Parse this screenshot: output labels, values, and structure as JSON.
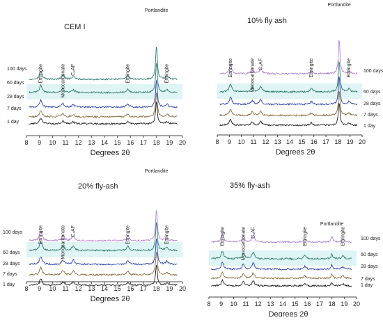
{
  "chart_data": [
    {
      "type": "line",
      "title": "CEM I",
      "xlabel": "Degrees 2θ",
      "ylabel": "",
      "xlim": [
        8,
        20
      ],
      "xticks": [
        "8",
        "9",
        "10",
        "11",
        "12",
        "13",
        "14",
        "15",
        "16",
        "17",
        "18",
        "19",
        "20"
      ],
      "series": [
        {
          "name": "100 days",
          "color": "#2a7a6a"
        },
        {
          "name": "60 days",
          "color": "#2a7a6a"
        },
        {
          "name": "28 days",
          "color": "#2b3fb0"
        },
        {
          "name": "7 days",
          "color": "#8a6a3a"
        },
        {
          "name": "1 day",
          "color": "#222222"
        }
      ],
      "peaks": [
        {
          "label": "Ettringite",
          "x": 9.1,
          "h": 22
        },
        {
          "label": "Monocarbonate",
          "x": 10.8,
          "h": 12
        },
        {
          "label": "C₄AF",
          "x": 11.6,
          "h": 8
        },
        {
          "label": "Ettringite",
          "x": 15.8,
          "h": 10
        },
        {
          "label": "Portlandite",
          "x": 18.0,
          "h": 90
        },
        {
          "label": "Ettringite",
          "x": 18.8,
          "h": 9
        }
      ]
    },
    {
      "type": "line",
      "title": "10% fly ash",
      "xlabel": "Degrees 2θ",
      "ylabel": "",
      "xlim": [
        8,
        20
      ],
      "xticks": [
        "8",
        "9",
        "10",
        "11",
        "12",
        "13",
        "14",
        "15",
        "16",
        "17",
        "18",
        "19",
        "20"
      ],
      "series": [
        {
          "name": "100 days",
          "color": "#b07fd8"
        },
        {
          "name": "60 days",
          "color": "#2a7a6a"
        },
        {
          "name": "28 days",
          "color": "#2b3fb0"
        },
        {
          "name": "7 days",
          "color": "#8a6a3a"
        },
        {
          "name": "1 day",
          "color": "#222222"
        }
      ],
      "peaks": [
        {
          "label": "Ettringite",
          "x": 9.1,
          "h": 24
        },
        {
          "label": "Monocarbonate",
          "x": 10.9,
          "h": 13
        },
        {
          "label": "C₄AF",
          "x": 11.6,
          "h": 16
        },
        {
          "label": "Ettringite",
          "x": 15.8,
          "h": 9
        },
        {
          "label": "Portlandite",
          "x": 18.1,
          "h": 95
        },
        {
          "label": "Ettringite",
          "x": 18.9,
          "h": 9
        }
      ]
    },
    {
      "type": "line",
      "title": "20% fly-ash",
      "xlabel": "Degrees 2θ",
      "ylabel": "",
      "xlim": [
        8,
        20
      ],
      "xticks": [
        "8",
        "9",
        "10",
        "11",
        "12",
        "13",
        "14",
        "15",
        "16",
        "17",
        "18",
        "19",
        "20"
      ],
      "series": [
        {
          "name": "100 days",
          "color": "#b07fd8"
        },
        {
          "name": "60 days",
          "color": "#2a7a6a"
        },
        {
          "name": "28 days",
          "color": "#2b3fb0"
        },
        {
          "name": "7 days",
          "color": "#8a6a3a"
        },
        {
          "name": "1 day",
          "color": "#222222"
        }
      ],
      "peaks": [
        {
          "label": "Ettringite",
          "x": 9.1,
          "h": 26
        },
        {
          "label": "Monocarbonate",
          "x": 10.8,
          "h": 14
        },
        {
          "label": "C₄AF",
          "x": 11.6,
          "h": 14
        },
        {
          "label": "Ettringite",
          "x": 15.8,
          "h": 12
        },
        {
          "label": "Portlandite",
          "x": 18.0,
          "h": 85
        },
        {
          "label": "Ettringite",
          "x": 18.8,
          "h": 9
        }
      ]
    },
    {
      "type": "line",
      "title": "35% fly-ash",
      "xlabel": "Degrees 2θ",
      "ylabel": "",
      "xlim": [
        8,
        20
      ],
      "xticks": [
        "8",
        "9",
        "10",
        "11",
        "12",
        "13",
        "14",
        "15",
        "16",
        "17",
        "18",
        "19",
        "20"
      ],
      "series": [
        {
          "name": "100 days",
          "color": "#b07fd8"
        },
        {
          "name": "60 days",
          "color": "#2a7a6a"
        },
        {
          "name": "28 days",
          "color": "#2b3fb0"
        },
        {
          "name": "7 days",
          "color": "#8a6a3a"
        },
        {
          "name": "1 day",
          "color": "#222222"
        }
      ],
      "peaks": [
        {
          "label": "Ettringite",
          "x": 9.1,
          "h": 22
        },
        {
          "label": "Monocarbonate",
          "x": 10.8,
          "h": 16
        },
        {
          "label": "C₄AF",
          "x": 11.6,
          "h": 20
        },
        {
          "label": "Ettringite",
          "x": 15.8,
          "h": 9
        },
        {
          "label": "Portlandite",
          "x": 18.0,
          "h": 14
        },
        {
          "label": "Ettringite",
          "x": 18.9,
          "h": 8
        }
      ]
    }
  ]
}
